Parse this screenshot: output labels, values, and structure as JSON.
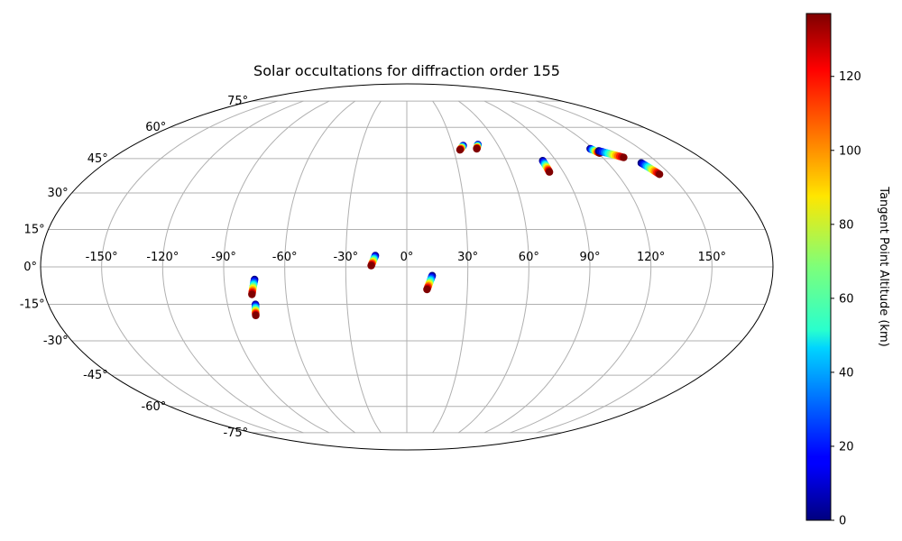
{
  "chart_data": {
    "type": "scatter",
    "projection": "mollweide",
    "title": "Solar occultations for diffraction order 155",
    "longitude_ticks": [
      "-150°",
      "-120°",
      "-90°",
      "-60°",
      "-30°",
      "0°",
      "30°",
      "60°",
      "90°",
      "120°",
      "150°"
    ],
    "latitude_ticks": [
      "75°",
      "60°",
      "45°",
      "30°",
      "15°",
      "0°",
      "-15°",
      "-30°",
      "-45°",
      "-60°",
      "-75°"
    ],
    "grid": true,
    "colorbar": {
      "label": "Tangent Point Altitude (km)",
      "colormap": "jet",
      "range": [
        0,
        137
      ],
      "ticks": [
        "0",
        "20",
        "40",
        "60",
        "80",
        "100",
        "120"
      ],
      "placement": "right"
    },
    "tracks": [
      {
        "lon_top": -15.5,
        "lat_top": 4.5,
        "lon_bottom": -17.5,
        "lat_bottom": 0.5,
        "alt_top": 0,
        "alt_bottom": 137
      },
      {
        "lon_top": 12.5,
        "lat_top": -3.5,
        "lon_bottom": 10.0,
        "lat_bottom": -9.0,
        "alt_top": 0,
        "alt_bottom": 137
      },
      {
        "lon_top": -75.0,
        "lat_top": -5.0,
        "lon_bottom": -77.0,
        "lat_bottom": -11.0,
        "alt_top": 0,
        "alt_bottom": 137
      },
      {
        "lon_top": -76.0,
        "lat_top": -15.0,
        "lon_bottom": -77.0,
        "lat_bottom": -19.5,
        "alt_top": 0,
        "alt_bottom": 137
      },
      {
        "lon_top": 37.0,
        "lat_top": 51.0,
        "lon_bottom": 34.0,
        "lat_bottom": 49.0,
        "alt_top": 0,
        "alt_bottom": 137
      },
      {
        "lon_top": 47.0,
        "lat_top": 51.5,
        "lon_bottom": 45.0,
        "lat_bottom": 49.5,
        "alt_top": 0,
        "alt_bottom": 137
      },
      {
        "lon_top": 82.0,
        "lat_top": 44.0,
        "lon_bottom": 82.0,
        "lat_bottom": 39.0,
        "alt_top": 0,
        "alt_bottom": 137
      },
      {
        "lon_top": 118.0,
        "lat_top": 49.5,
        "lon_bottom": 121.0,
        "lat_bottom": 47.5,
        "alt_top": 0,
        "alt_bottom": 137
      },
      {
        "lon_top": 122.0,
        "lat_top": 48.5,
        "lon_bottom": 133.0,
        "lat_bottom": 45.5,
        "alt_top": 0,
        "alt_bottom": 137
      },
      {
        "lon_top": 140.0,
        "lat_top": 43.0,
        "lon_bottom": 144.0,
        "lat_bottom": 38.0,
        "alt_top": 0,
        "alt_bottom": 137
      }
    ]
  }
}
